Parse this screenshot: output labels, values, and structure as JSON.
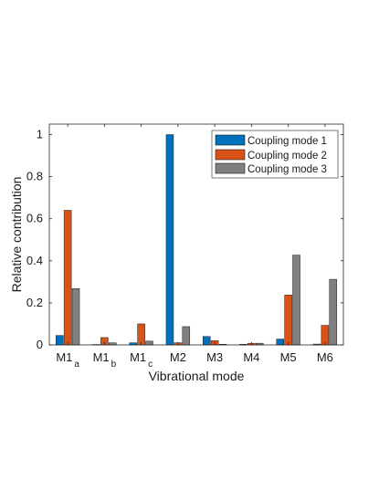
{
  "chart_data": {
    "type": "bar",
    "categories": [
      {
        "base": "M1",
        "sub": "a"
      },
      {
        "base": "M1",
        "sub": "b"
      },
      {
        "base": "M1",
        "sub": "c"
      },
      {
        "base": "M2",
        "sub": ""
      },
      {
        "base": "M3",
        "sub": ""
      },
      {
        "base": "M4",
        "sub": ""
      },
      {
        "base": "M5",
        "sub": ""
      },
      {
        "base": "M6",
        "sub": ""
      }
    ],
    "series": [
      {
        "name": "Coupling mode 1",
        "color": "#0072BD",
        "values": [
          0.045,
          0.002,
          0.01,
          1.0,
          0.04,
          0.003,
          0.028,
          0.004
        ]
      },
      {
        "name": "Coupling mode 2",
        "color": "#D95319",
        "values": [
          0.64,
          0.035,
          0.1,
          0.01,
          0.02,
          0.008,
          0.237,
          0.093
        ]
      },
      {
        "name": "Coupling mode 3",
        "color": "#7F7F7F",
        "values": [
          0.268,
          0.01,
          0.018,
          0.087,
          0.003,
          0.008,
          0.427,
          0.312
        ]
      }
    ],
    "xlabel": "Vibrational mode",
    "ylabel": "Relative contribution",
    "ylim": [
      0,
      1.05
    ],
    "yticks": [
      "0",
      "0.2",
      "0.4",
      "0.6",
      "0.8",
      "1"
    ],
    "legend_position": "top-right",
    "grid": false
  }
}
